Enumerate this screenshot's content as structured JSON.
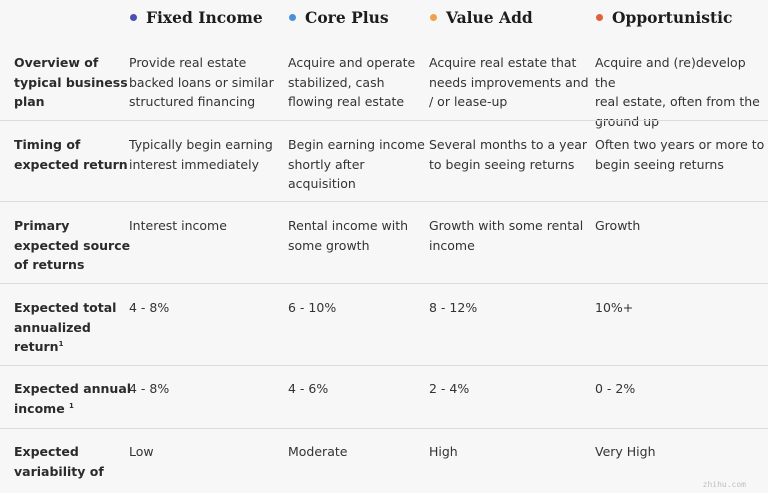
{
  "columns": [
    {
      "label": "Fixed Income",
      "color": "#4a4fb4"
    },
    {
      "label": "Core Plus",
      "color": "#4a90d9"
    },
    {
      "label": "Value Add",
      "color": "#f0a24a"
    },
    {
      "label": "Opportunistic",
      "color": "#e0623a"
    }
  ],
  "rows": [
    {
      "label": [
        "Overview of",
        "typical business",
        "plan"
      ],
      "cells": [
        [
          "Provide real estate",
          "backed loans or similar",
          "structured financing"
        ],
        [
          "Acquire and operate",
          "stabilized, cash",
          "flowing real estate"
        ],
        [
          "Acquire real estate that",
          "needs improvements and",
          "/ or lease-up"
        ],
        [
          "Acquire and (re)develop the",
          "real estate, often from the",
          "ground up"
        ]
      ]
    },
    {
      "label": [
        "Timing of",
        "expected return"
      ],
      "cells": [
        [
          "Typically begin earning",
          "interest immediately"
        ],
        [
          "Begin earning income",
          "shortly after",
          "acquisition"
        ],
        [
          "Several months to a year",
          "to begin seeing returns"
        ],
        [
          "Often two years or more to",
          "begin seeing returns"
        ]
      ]
    },
    {
      "label": [
        "Primary",
        "expected source",
        "of returns"
      ],
      "cells": [
        [
          "Interest income"
        ],
        [
          "Rental income with",
          "some growth"
        ],
        [
          "Growth with some rental",
          "income"
        ],
        [
          "Growth"
        ]
      ]
    },
    {
      "label": [
        "Expected total",
        "annualized",
        "return"
      ],
      "label_sup": "1",
      "cells": [
        [
          "4 - 8%"
        ],
        [
          "6 - 10%"
        ],
        [
          "8 - 12%"
        ],
        [
          "10%+"
        ]
      ]
    },
    {
      "label": [
        "Expected annual",
        "income "
      ],
      "label_sup": "1",
      "cells": [
        [
          "4 - 8%"
        ],
        [
          "4 - 6%"
        ],
        [
          "2 - 4%"
        ],
        [
          "0 - 2%"
        ]
      ]
    },
    {
      "label": [
        "Expected",
        "variability of"
      ],
      "cells": [
        [
          "Low"
        ],
        [
          "Moderate"
        ],
        [
          "High"
        ],
        [
          "Very High"
        ]
      ]
    }
  ],
  "watermark": "zhihu.com"
}
